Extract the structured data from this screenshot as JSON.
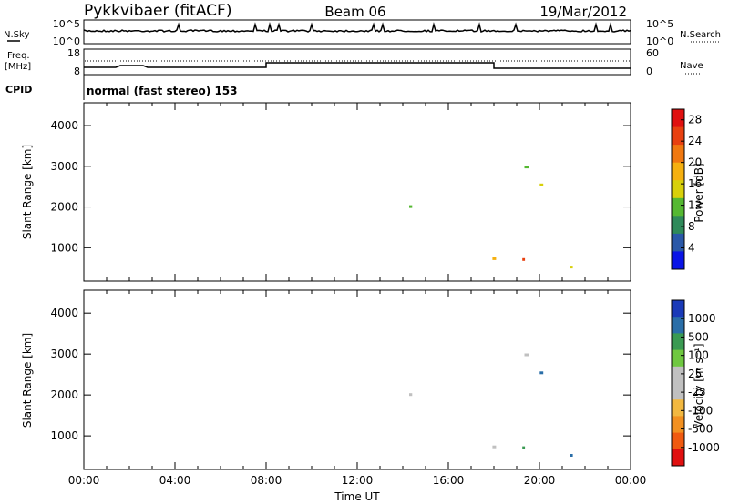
{
  "header": {
    "station": "Pykkvibaer (fitACF)",
    "beam": "Beam 06",
    "date": "19/Mar/2012"
  },
  "summary_panels": {
    "nsky_label": "N.Sky",
    "nsky_ticks": [
      "10^5",
      "10^0"
    ],
    "nsearch_label": "N.Search",
    "nsearch_ticks": [
      "10^5",
      "10^0"
    ],
    "freq_label": "Freq.",
    "freq_unit": "[MHz]",
    "freq_ticks": [
      "18",
      "8"
    ],
    "nave_label": "Nave",
    "nave_ticks": [
      "60",
      "0"
    ],
    "cpid_label": "CPID",
    "cpid_text": "normal (fast stereo) 153"
  },
  "colors": {
    "power_scale": [
      "#0a14e6",
      "#2a58a8",
      "#2f8a5a",
      "#55b832",
      "#d8d00a",
      "#f5b010",
      "#f07810",
      "#e84010",
      "#e01010"
    ],
    "velocity_scale": [
      "#e01010",
      "#f05a10",
      "#f29020",
      "#f2b840",
      "#c0c0c0",
      "#c0c0c0",
      "#6fc840",
      "#3a9a52",
      "#2a6ea8",
      "#1a3ab8"
    ]
  },
  "chart_data": [
    {
      "type": "heatmap",
      "name": "power",
      "ylabel": "Slant Range [km]",
      "y_ticks": [
        1000,
        2000,
        3000,
        4000
      ],
      "ylim": [
        180,
        4560
      ],
      "xlim_hours": [
        0,
        24
      ],
      "x_ticks": [
        "00:00",
        "04:00",
        "08:00",
        "12:00",
        "16:00",
        "20:00",
        "00:00"
      ],
      "colorbar_label": "Power [dB]",
      "colorbar_ticks": [
        "4",
        "8",
        "12",
        "16",
        "20",
        "24",
        "28"
      ],
      "colorbar_range": [
        0,
        30
      ]
    },
    {
      "type": "heatmap",
      "name": "velocity",
      "ylabel": "Slant Range [km]",
      "y_ticks": [
        1000,
        2000,
        3000,
        4000
      ],
      "ylim": [
        180,
        4560
      ],
      "xlim_hours": [
        0,
        24
      ],
      "x_ticks": [
        "00:00",
        "04:00",
        "08:00",
        "12:00",
        "16:00",
        "20:00",
        "00:00"
      ],
      "xlabel": "Time UT",
      "colorbar_label": "Velocity [m s⁻¹]",
      "colorbar_ticks": [
        "1000",
        "500",
        "100",
        "25",
        "-25",
        "-100",
        "-500",
        "-1000"
      ]
    }
  ]
}
